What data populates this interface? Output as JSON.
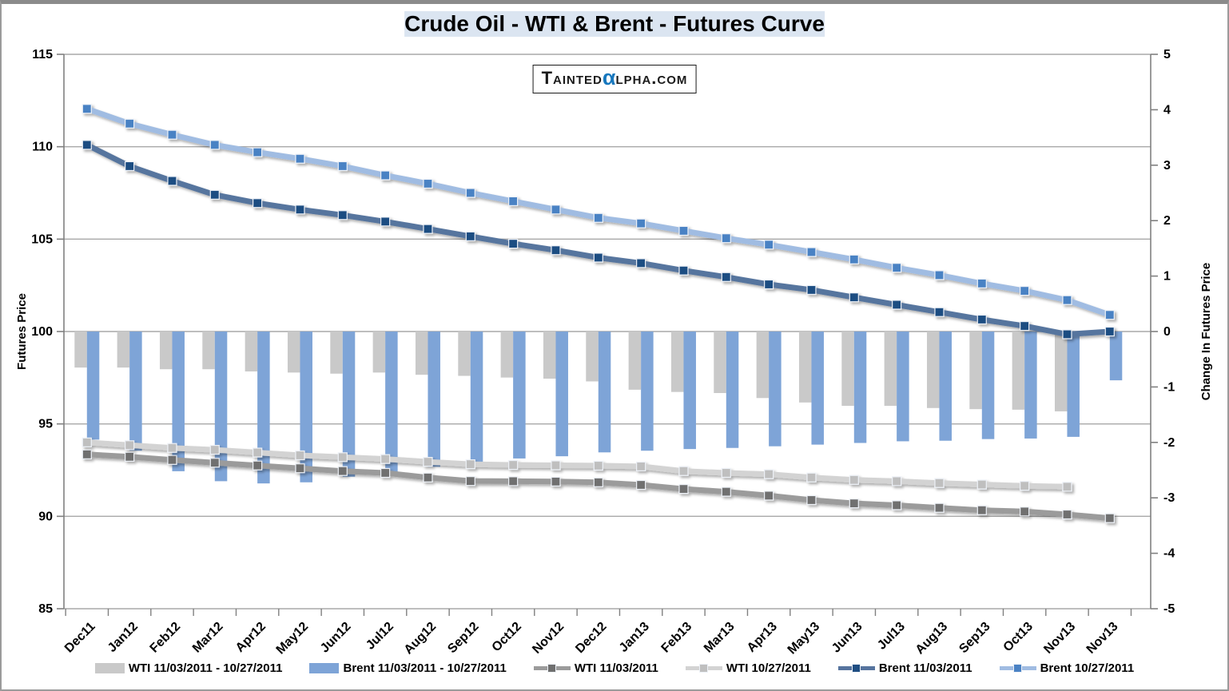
{
  "page": {
    "logo": {
      "part1": "Tainted",
      "alpha": "α",
      "part2": "lpha.com"
    }
  },
  "colors": {
    "title_bg": "#dbe5f1",
    "logo_alpha_blue": "#1878be",
    "grid": "#a8a8a8",
    "axis": "#808080",
    "text": "#000000",
    "bar_wti": "#c9c9c9",
    "bar_brent": "#7ea4d7",
    "line_wti_1103": "#9b9b9b",
    "line_wti_1027": "#d3d3d3",
    "line_brent_1103": "#56749e",
    "line_brent_1027": "#a0bce2"
  },
  "chart_data": {
    "type": "combo",
    "title": "Crude Oil - WTI & Brent - Futures Curve",
    "grid": true,
    "legend_position": "bottom",
    "categories": [
      "Dec11",
      "Jan12",
      "Feb12",
      "Mar12",
      "Apr12",
      "May12",
      "Jun12",
      "Jul12",
      "Aug12",
      "Sep12",
      "Oct12",
      "Nov12",
      "Dec12",
      "Jan13",
      "Feb13",
      "Mar13",
      "Apr13",
      "May13",
      "Jun13",
      "Jul13",
      "Aug13",
      "Sep13",
      "Oct13",
      "Nov13",
      "Nov13"
    ],
    "left_axis": {
      "label": "Futures Price",
      "min": 85,
      "max": 115,
      "tick_step": 5,
      "ticks": [
        115,
        110,
        105,
        100,
        95,
        90,
        85
      ]
    },
    "right_axis": {
      "label": "Change In Futures Price",
      "min": -5,
      "max": 5,
      "tick_step": 1,
      "ticks": [
        5,
        4,
        3,
        2,
        1,
        0,
        -1,
        -2,
        -3,
        -4,
        -5
      ]
    },
    "series": [
      {
        "name": "WTI 11/03/2011 - 10/27/2011",
        "type": "bar",
        "axis": "right",
        "color": "#c9c9c9",
        "values": [
          -0.65,
          -0.65,
          -0.68,
          -0.68,
          -0.72,
          -0.74,
          -0.76,
          -0.74,
          -0.78,
          -0.8,
          -0.83,
          -0.85,
          -0.9,
          -1.05,
          -1.09,
          -1.11,
          -1.2,
          -1.28,
          -1.34,
          -1.34,
          -1.38,
          -1.4,
          -1.41,
          -1.44,
          null
        ]
      },
      {
        "name": "Brent 11/03/2011 - 10/27/2011",
        "type": "bar",
        "axis": "right",
        "color": "#7ea4d7",
        "values": [
          -1.95,
          -2.15,
          -2.52,
          -2.7,
          -2.74,
          -2.72,
          -2.62,
          -2.53,
          -2.44,
          -2.36,
          -2.29,
          -2.25,
          -2.18,
          -2.15,
          -2.12,
          -2.1,
          -2.07,
          -2.04,
          -2.01,
          -1.98,
          -1.97,
          -1.94,
          -1.93,
          -1.9,
          -0.88
        ]
      },
      {
        "name": "WTI 11/03/2011",
        "type": "line",
        "axis": "left",
        "color": "#9b9b9b",
        "marker_color": "#6f6f6f",
        "values": [
          93.35,
          93.22,
          93.05,
          92.9,
          92.75,
          92.6,
          92.45,
          92.35,
          92.1,
          91.91,
          91.9,
          91.88,
          91.84,
          91.7,
          91.48,
          91.33,
          91.12,
          90.88,
          90.7,
          90.6,
          90.46,
          90.33,
          90.26,
          90.1,
          89.9
        ]
      },
      {
        "name": "WTI 10/27/2011",
        "type": "line",
        "axis": "left",
        "color": "#d3d3d3",
        "marker_color": "#bfbfbf",
        "values": [
          94.0,
          93.85,
          93.7,
          93.6,
          93.45,
          93.3,
          93.2,
          93.1,
          92.95,
          92.82,
          92.78,
          92.76,
          92.74,
          92.7,
          92.45,
          92.35,
          92.28,
          92.1,
          91.97,
          91.9,
          91.8,
          91.72,
          91.65,
          91.6,
          null
        ]
      },
      {
        "name": "Brent 11/03/2011",
        "type": "line",
        "axis": "left",
        "color": "#56749e",
        "marker_color": "#1f4e82",
        "values": [
          110.1,
          108.95,
          108.15,
          107.4,
          106.95,
          106.6,
          106.3,
          105.95,
          105.55,
          105.15,
          104.75,
          104.4,
          104.0,
          103.7,
          103.3,
          102.95,
          102.55,
          102.25,
          101.85,
          101.45,
          101.05,
          100.65,
          100.3,
          99.85,
          100.0
        ]
      },
      {
        "name": "Brent 10/27/2011",
        "type": "line",
        "axis": "left",
        "color": "#a0bce2",
        "marker_color": "#4a82c4",
        "values": [
          112.05,
          111.25,
          110.65,
          110.1,
          109.7,
          109.35,
          108.95,
          108.45,
          108.0,
          107.5,
          107.05,
          106.6,
          106.15,
          105.85,
          105.45,
          105.05,
          104.7,
          104.3,
          103.9,
          103.45,
          103.05,
          102.6,
          102.2,
          101.7,
          100.9
        ]
      }
    ]
  }
}
